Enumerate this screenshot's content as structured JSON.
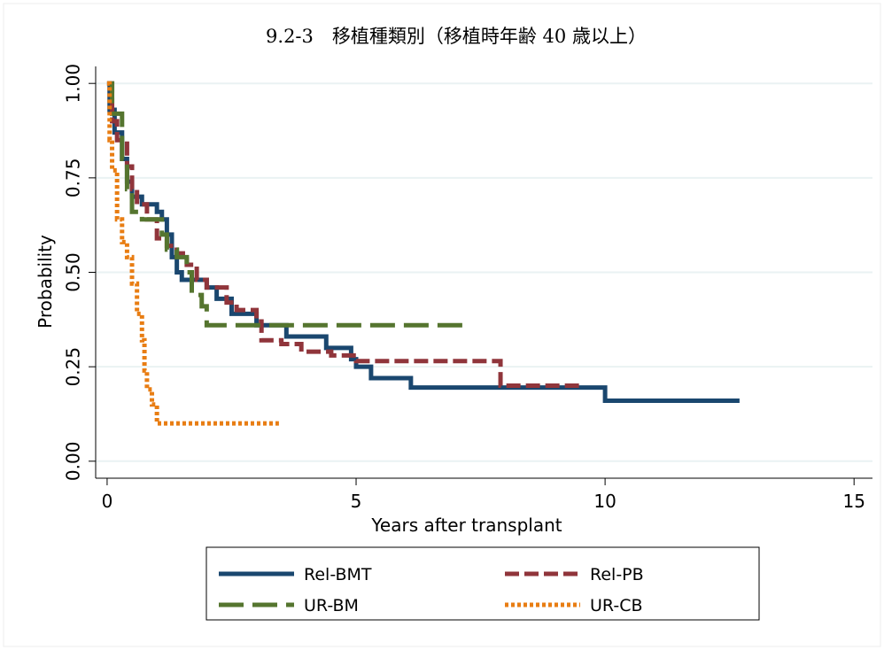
{
  "chart_data": {
    "type": "step",
    "title": "9.2-3　移植種類別（移植時年齢 40 歳以上）",
    "x_label": "Years after transplant",
    "y_label": "Probability",
    "xlim": [
      -0.23,
      15.37
    ],
    "ylim": [
      -0.045,
      1.045
    ],
    "xticks": [
      0,
      5,
      10,
      15
    ],
    "yticks": [
      {
        "value": 0,
        "label": "0.00"
      },
      {
        "value": 0.25,
        "label": "0.25"
      },
      {
        "value": 0.5,
        "label": "0.50"
      },
      {
        "value": 0.75,
        "label": "0.75"
      },
      {
        "value": 1,
        "label": "1.00"
      }
    ],
    "grid": true,
    "legend": "bottom",
    "series": [
      {
        "name": "Rel-BMT",
        "color": "#1a476f",
        "dash": "solid",
        "x": [
          0,
          0.05,
          0.15,
          0.3,
          0.4,
          0.5,
          0.7,
          1.0,
          1.1,
          1.2,
          1.3,
          1.4,
          1.5,
          2.0,
          2.2,
          2.5,
          3.0,
          3.6,
          4.4,
          4.9,
          5.0,
          5.3,
          6.1,
          10.0,
          12.7
        ],
        "values": [
          1.0,
          0.93,
          0.87,
          0.8,
          0.74,
          0.7,
          0.68,
          0.66,
          0.64,
          0.6,
          0.54,
          0.5,
          0.48,
          0.46,
          0.43,
          0.39,
          0.36,
          0.33,
          0.3,
          0.27,
          0.25,
          0.22,
          0.195,
          0.16,
          0.16
        ]
      },
      {
        "name": "Rel-PB",
        "color": "#90353b",
        "dash": "dashed",
        "x": [
          0,
          0.1,
          0.2,
          0.4,
          0.5,
          0.6,
          0.8,
          1.0,
          1.2,
          1.4,
          1.6,
          1.8,
          2.0,
          2.4,
          2.6,
          3.0,
          3.1,
          3.5,
          3.9,
          4.5,
          5.0,
          7.9,
          9.5
        ],
        "values": [
          1.0,
          0.9,
          0.85,
          0.78,
          0.72,
          0.68,
          0.64,
          0.59,
          0.57,
          0.55,
          0.52,
          0.48,
          0.46,
          0.42,
          0.4,
          0.37,
          0.32,
          0.31,
          0.29,
          0.28,
          0.265,
          0.2,
          0.2
        ]
      },
      {
        "name": "UR-BM",
        "color": "#55752f",
        "dash": "longdash",
        "x": [
          0,
          0.1,
          0.3,
          0.4,
          0.5,
          0.7,
          1.1,
          1.2,
          1.4,
          1.6,
          1.7,
          1.9,
          2.0,
          7.3
        ],
        "values": [
          1.0,
          0.92,
          0.8,
          0.72,
          0.66,
          0.64,
          0.6,
          0.56,
          0.54,
          0.5,
          0.44,
          0.41,
          0.36,
          0.36
        ]
      },
      {
        "name": "UR-CB",
        "color": "#e87d13",
        "dash": "dotted",
        "x": [
          0,
          0.05,
          0.1,
          0.2,
          0.3,
          0.4,
          0.5,
          0.6,
          0.7,
          0.75,
          0.8,
          0.9,
          1.0,
          3.45
        ],
        "values": [
          1.0,
          0.85,
          0.77,
          0.64,
          0.58,
          0.54,
          0.47,
          0.39,
          0.32,
          0.24,
          0.19,
          0.15,
          0.1,
          0.1
        ]
      }
    ]
  }
}
